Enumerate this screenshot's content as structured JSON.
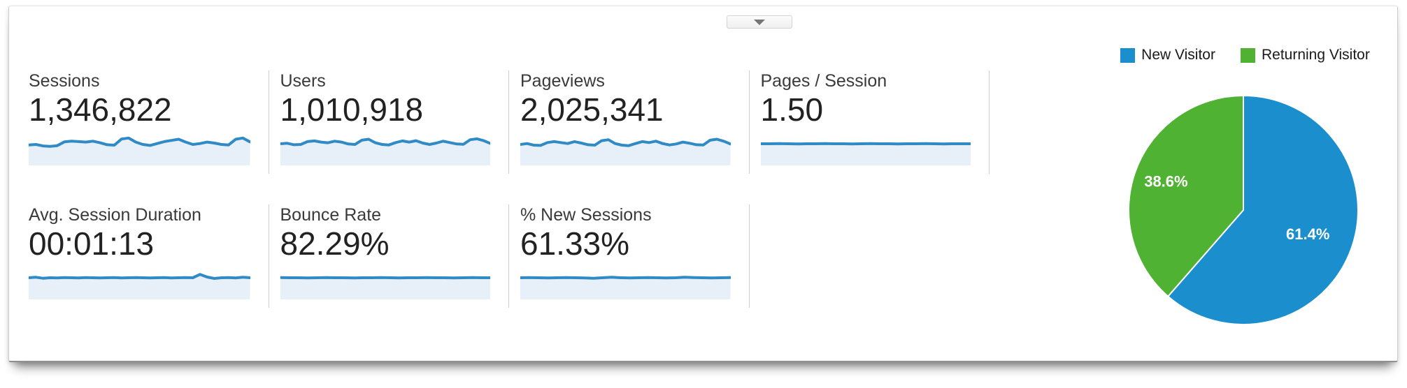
{
  "widget": {
    "collapse_button_icon": "chevron-down"
  },
  "metrics": {
    "rows": [
      {
        "cards": [
          {
            "label": "Sessions",
            "value": "1,346,822"
          },
          {
            "label": "Users",
            "value": "1,010,918"
          },
          {
            "label": "Pageviews",
            "value": "2,025,341"
          },
          {
            "label": "Pages / Session",
            "value": "1.50"
          }
        ]
      },
      {
        "cards": [
          {
            "label": "Avg. Session Duration",
            "value": "00:01:13"
          },
          {
            "label": "Bounce Rate",
            "value": "82.29%"
          },
          {
            "label": "% New Sessions",
            "value": "61.33%"
          }
        ]
      }
    ]
  },
  "colors": {
    "spark_line": "#2f8ac5",
    "spark_fill": "#e7f0f8",
    "pie_blue": "#1b8fcd",
    "pie_green": "#4fb233",
    "divider": "#cccccc"
  },
  "chart_data": [
    {
      "type": "pie",
      "labels": [
        "New Visitor",
        "Returning Visitor"
      ],
      "values": [
        61.4,
        38.6
      ],
      "display_labels": [
        "61.4%",
        "38.6%"
      ],
      "colors": [
        "#1b8fcd",
        "#4fb233"
      ],
      "legend_position": "top",
      "start_angle_deg": 0,
      "direction": "clockwise"
    },
    {
      "type": "line",
      "title": "Metric sparklines (normalized shape 0-1; no axes or tick labels shown in UI)",
      "series": [
        {
          "name": "Sessions",
          "values": [
            0.45,
            0.47,
            0.41,
            0.39,
            0.42,
            0.58,
            0.61,
            0.59,
            0.57,
            0.61,
            0.54,
            0.46,
            0.44,
            0.7,
            0.74,
            0.57,
            0.47,
            0.43,
            0.51,
            0.59,
            0.64,
            0.69,
            0.57,
            0.47,
            0.51,
            0.57,
            0.53,
            0.47,
            0.45,
            0.69,
            0.74,
            0.58
          ]
        },
        {
          "name": "Users",
          "values": [
            0.5,
            0.52,
            0.46,
            0.47,
            0.59,
            0.62,
            0.57,
            0.54,
            0.61,
            0.57,
            0.49,
            0.47,
            0.65,
            0.69,
            0.54,
            0.47,
            0.45,
            0.55,
            0.62,
            0.57,
            0.63,
            0.53,
            0.47,
            0.53,
            0.61,
            0.55,
            0.49,
            0.48,
            0.67,
            0.71,
            0.63,
            0.51
          ]
        },
        {
          "name": "Pageviews",
          "values": [
            0.47,
            0.51,
            0.44,
            0.43,
            0.55,
            0.59,
            0.55,
            0.51,
            0.59,
            0.53,
            0.46,
            0.44,
            0.63,
            0.67,
            0.51,
            0.44,
            0.42,
            0.51,
            0.59,
            0.55,
            0.61,
            0.51,
            0.45,
            0.49,
            0.57,
            0.52,
            0.46,
            0.45,
            0.65,
            0.69,
            0.61,
            0.49
          ]
        },
        {
          "name": "Pages / Session",
          "values": [
            0.5,
            0.5,
            0.51,
            0.5,
            0.49,
            0.5,
            0.5,
            0.51,
            0.5,
            0.5,
            0.49,
            0.5,
            0.51,
            0.5,
            0.5,
            0.49,
            0.5,
            0.5,
            0.51,
            0.5,
            0.49,
            0.5,
            0.5,
            0.5
          ]
        },
        {
          "name": "Avg. Session Duration",
          "values": [
            0.5,
            0.52,
            0.48,
            0.5,
            0.49,
            0.51,
            0.5,
            0.49,
            0.51,
            0.5,
            0.49,
            0.5,
            0.51,
            0.49,
            0.5,
            0.51,
            0.5,
            0.49,
            0.5,
            0.51,
            0.49,
            0.5,
            0.51,
            0.5,
            0.64,
            0.53,
            0.47,
            0.5,
            0.51,
            0.49,
            0.52,
            0.5
          ]
        },
        {
          "name": "Bounce Rate",
          "values": [
            0.51,
            0.5,
            0.5,
            0.49,
            0.5,
            0.51,
            0.5,
            0.5,
            0.49,
            0.5,
            0.5,
            0.51,
            0.5,
            0.49,
            0.5,
            0.5,
            0.51,
            0.5,
            0.5,
            0.49,
            0.5,
            0.51,
            0.5,
            0.5
          ]
        },
        {
          "name": "% New Sessions",
          "values": [
            0.5,
            0.51,
            0.5,
            0.49,
            0.5,
            0.51,
            0.5,
            0.49,
            0.48,
            0.5,
            0.52,
            0.5,
            0.49,
            0.5,
            0.51,
            0.5,
            0.49,
            0.5,
            0.52,
            0.51,
            0.5,
            0.49,
            0.5,
            0.51
          ]
        }
      ]
    }
  ]
}
